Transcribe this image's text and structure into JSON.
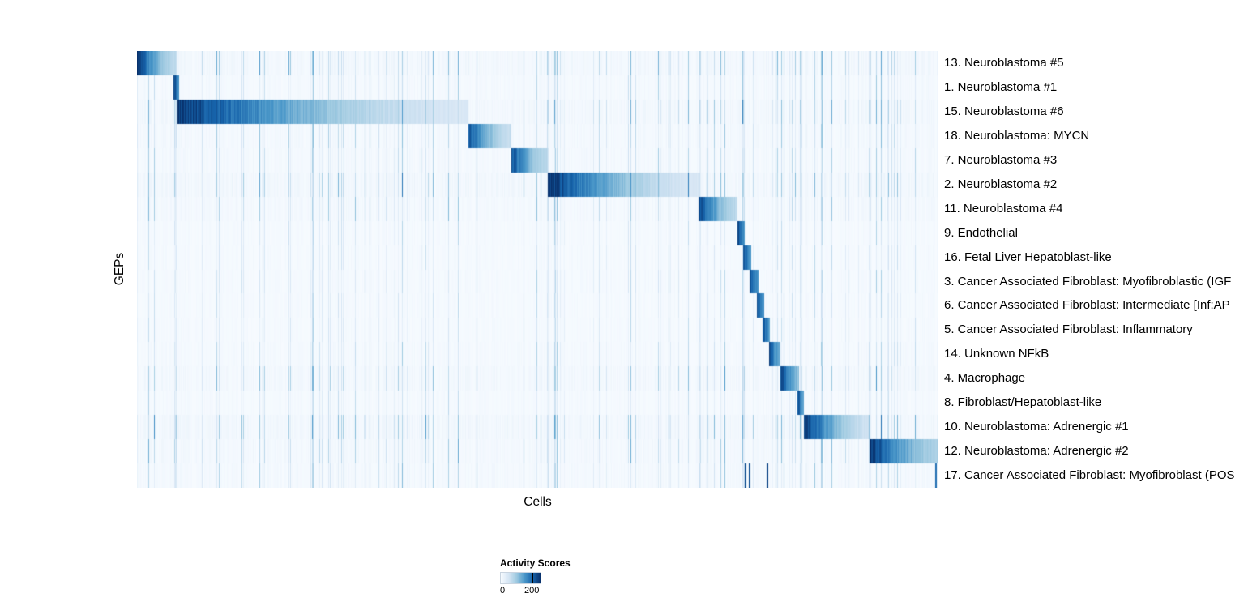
{
  "chart_data": {
    "type": "heatmap",
    "title": "",
    "xlabel": "Cells",
    "ylabel": "GEPs",
    "grid": false,
    "legend": {
      "title": "Activity Scores",
      "min_label": "0",
      "max_label": "200",
      "ticks": [
        0,
        200
      ],
      "max_tick_fraction": 0.8,
      "position": "bottom-left"
    },
    "value_range": [
      0,
      200
    ],
    "colormap": {
      "name": "Blues",
      "stops": [
        "#f7fbff",
        "#d5e5f4",
        "#9dc9e0",
        "#4a97c9",
        "#1764ab",
        "#08306b"
      ]
    },
    "x_axis": "cells (sorted by max activity GEP)",
    "global_stripes": [
      0.048,
      0.513,
      0.702,
      0.757,
      0.829,
      0.915
    ],
    "rows": [
      {
        "label": "13. Neuroblastoma #5",
        "block_start": 0.0,
        "block_end": 0.048,
        "peak": 1.0,
        "edge": 0.3,
        "noise": 1.0
      },
      {
        "label": "1. Neuroblastoma #1",
        "block_start": 0.046,
        "block_end": 0.053,
        "peak": 0.95,
        "edge": 0.7,
        "noise": 0.65
      },
      {
        "label": "15. Neuroblastoma #6",
        "block_start": 0.051,
        "block_end": 0.414,
        "peak": 1.0,
        "edge": 0.18,
        "noise": 1.0
      },
      {
        "label": "18. Neuroblastoma: MYCN",
        "block_start": 0.414,
        "block_end": 0.467,
        "peak": 0.88,
        "edge": 0.25,
        "noise": 0.75
      },
      {
        "label": "7. Neuroblastoma #3",
        "block_start": 0.467,
        "block_end": 0.513,
        "peak": 0.9,
        "edge": 0.3,
        "noise": 0.7
      },
      {
        "label": "2. Neuroblastoma #2",
        "block_start": 0.513,
        "block_end": 0.701,
        "peak": 1.0,
        "edge": 0.18,
        "noise": 1.1
      },
      {
        "label": "11. Neuroblastoma #4",
        "block_start": 0.701,
        "block_end": 0.749,
        "peak": 0.95,
        "edge": 0.3,
        "noise": 0.75
      },
      {
        "label": "9. Endothelial",
        "block_start": 0.749,
        "block_end": 0.758,
        "peak": 0.95,
        "edge": 0.6,
        "noise": 0.5
      },
      {
        "label": "16. Fetal Liver Hepatoblast-like",
        "block_start": 0.756,
        "block_end": 0.766,
        "peak": 0.95,
        "edge": 0.6,
        "noise": 0.5
      },
      {
        "label": "3. Cancer Associated Fibroblast: Myofibroblastic (IGF",
        "block_start": 0.764,
        "block_end": 0.776,
        "peak": 0.95,
        "edge": 0.6,
        "noise": 0.55
      },
      {
        "label": "6. Cancer Associated Fibroblast: Intermediate [Inf:AP",
        "block_start": 0.774,
        "block_end": 0.783,
        "peak": 0.9,
        "edge": 0.6,
        "noise": 0.5
      },
      {
        "label": "5. Cancer Associated Fibroblast: Inflammatory",
        "block_start": 0.781,
        "block_end": 0.79,
        "peak": 0.9,
        "edge": 0.6,
        "noise": 0.5
      },
      {
        "label": "14. Unknown NFkB",
        "block_start": 0.789,
        "block_end": 0.803,
        "peak": 0.95,
        "edge": 0.5,
        "noise": 0.6
      },
      {
        "label": "4. Macrophage",
        "block_start": 0.803,
        "block_end": 0.826,
        "peak": 0.95,
        "edge": 0.45,
        "noise": 0.9
      },
      {
        "label": "8. Fibroblast/Hepatoblast-like",
        "block_start": 0.824,
        "block_end": 0.832,
        "peak": 0.9,
        "edge": 0.6,
        "noise": 0.55
      },
      {
        "label": "10. Neuroblastoma: Adrenergic #1",
        "block_start": 0.832,
        "block_end": 0.914,
        "peak": 1.0,
        "edge": 0.22,
        "noise": 1.1
      },
      {
        "label": "12. Neuroblastoma: Adrenergic #2",
        "block_start": 0.914,
        "block_end": 1.0,
        "peak": 1.0,
        "edge": 0.35,
        "noise": 0.8
      },
      {
        "label": "17. Cancer Associated Fibroblast: Myofibroblast (POS",
        "block_start": 0.0,
        "block_end": 0.0,
        "peak": 0.0,
        "edge": 0.0,
        "noise": 0.7,
        "stripes": [
          0.759,
          0.764,
          0.786,
          0.997
        ]
      }
    ]
  }
}
